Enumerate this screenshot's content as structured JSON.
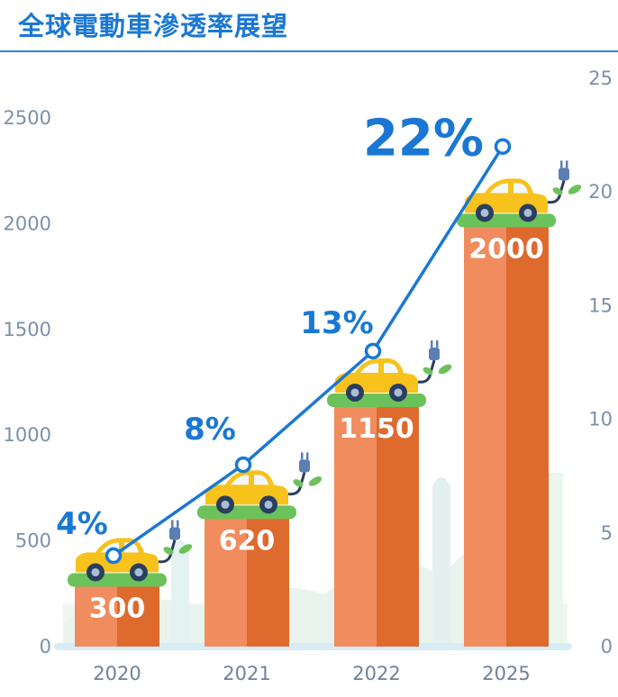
{
  "title": "全球電動車滲透率展望",
  "chart_data": {
    "type": "bar",
    "categories": [
      "2020",
      "2021",
      "2022",
      "2025"
    ],
    "series": [
      {
        "values": [
          300,
          620,
          1150,
          2000
        ],
        "type": "bar"
      },
      {
        "values": [
          4,
          8,
          13,
          22
        ],
        "type": "line",
        "axis": "right",
        "labels": [
          "4%",
          "8%",
          "13%",
          "22%"
        ]
      }
    ],
    "ylim": [
      0,
      2500
    ],
    "y_ticks": [
      "0",
      "500",
      "1000",
      "1500",
      "2000",
      "2500"
    ],
    "y2lim": [
      0,
      25
    ],
    "y2_ticks": [
      "0",
      "5",
      "10",
      "15",
      "20",
      "25"
    ],
    "colors": {
      "bar_light": "#f08c5e",
      "bar_dark": "#de6a2d",
      "line": "#1a78d4",
      "grass": "#6cc25a",
      "car": "#f7c21b"
    },
    "grid": false
  }
}
